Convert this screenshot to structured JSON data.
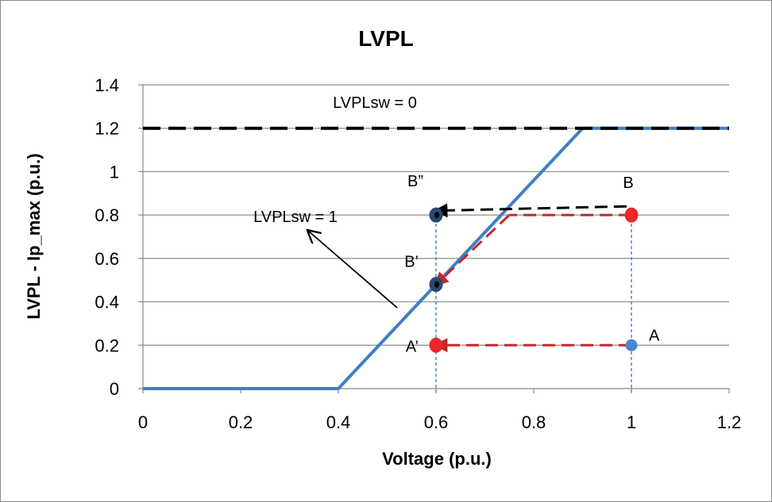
{
  "chart_data": {
    "type": "line",
    "title": "LVPL",
    "xlabel": "Voltage (p.u.)",
    "ylabel": "LVPL - Ip_max (p.u.)",
    "xlim": [
      0,
      1.2
    ],
    "ylim": [
      0,
      1.4
    ],
    "xticks": [
      0,
      0.2,
      0.4,
      0.6,
      0.8,
      1,
      1.2
    ],
    "yticks": [
      0,
      0.2,
      0.4,
      0.6,
      0.8,
      1,
      1.2,
      1.4
    ],
    "xtick_labels": [
      "0",
      "0.2",
      "0.4",
      "0.6",
      "0.8",
      "1",
      "1.2"
    ],
    "ytick_labels": [
      "0",
      "0.2",
      "0.4",
      "0.6",
      "0.8",
      "1",
      "1.2",
      "1.4"
    ],
    "grid": "horizontal",
    "series": [
      {
        "name": "LVPLsw = 1",
        "color": "#3f7fc4",
        "style": "solid",
        "x": [
          0,
          0.4,
          0.9,
          1.2
        ],
        "y": [
          0,
          0,
          1.2,
          1.2
        ]
      },
      {
        "name": "LVPLsw = 0",
        "color": "#000000",
        "style": "dashed",
        "x": [
          0,
          1.2
        ],
        "y": [
          1.2,
          1.2
        ]
      }
    ],
    "points": [
      {
        "label": "A",
        "x": 1.0,
        "y": 0.2,
        "color": "#4a86d0"
      },
      {
        "label": "B",
        "x": 1.0,
        "y": 0.8,
        "color": "#e8282b"
      },
      {
        "label": "A’",
        "x": 0.6,
        "y": 0.2,
        "color": "#e8282b"
      },
      {
        "label": "B’",
        "x": 0.6,
        "y": 0.48,
        "color": "#2a4870"
      },
      {
        "label": "B”",
        "x": 0.6,
        "y": 0.8,
        "color": "#2a4870"
      }
    ],
    "arrows": [
      {
        "from": [
          1.0,
          0.2
        ],
        "to": [
          0.6,
          0.2
        ],
        "color": "#c0282b"
      },
      {
        "from": [
          1.0,
          0.8
        ],
        "to": [
          0.75,
          0.8
        ],
        "color": "#c0282b"
      },
      {
        "from": [
          0.75,
          0.8
        ],
        "to": [
          0.6,
          0.48
        ],
        "color": "#c0282b"
      },
      {
        "from": [
          0.99,
          0.84
        ],
        "to": [
          0.6,
          0.82
        ],
        "color": "#000000"
      }
    ],
    "annotations": [
      {
        "text": "LVPLsw = 0"
      },
      {
        "text": "LVPLsw = 1"
      }
    ]
  }
}
